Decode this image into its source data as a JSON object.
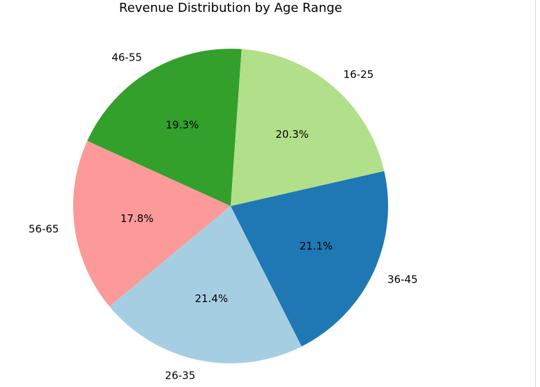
{
  "chart_data": {
    "type": "pie",
    "title": "Revenue Distribution by Age Range",
    "categories": [
      "46-55",
      "56-65",
      "26-35",
      "36-45",
      "16-25"
    ],
    "values": [
      19.3,
      17.8,
      21.4,
      21.1,
      20.3
    ],
    "value_labels": [
      "19.3%",
      "17.8%",
      "21.4%",
      "21.1%",
      "20.3%"
    ],
    "colors": [
      "#33a02c",
      "#fb9a99",
      "#a6cee3",
      "#1f78b4",
      "#b2df8a"
    ],
    "start_angle_deg": 86,
    "direction": "counterclockwise",
    "legend": "none"
  }
}
